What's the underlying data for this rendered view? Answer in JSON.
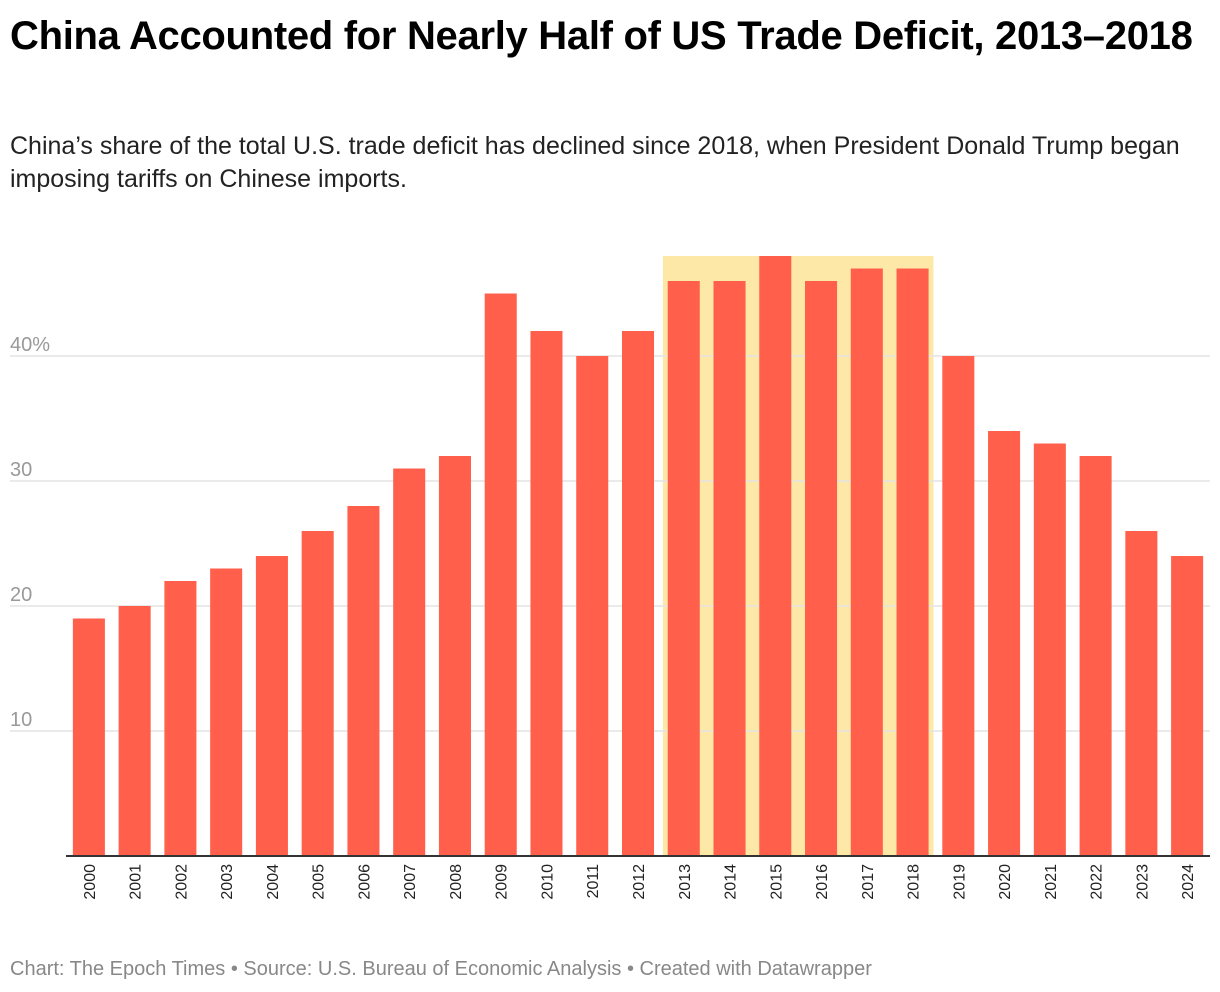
{
  "title": "China Accounted for Nearly Half of US Trade Deficit, 2013–2018",
  "subtitle": "China’s share of the total U.S. trade deficit has declined since 2018, when President Donald Trump began imposing tariffs on Chinese imports.",
  "footer": {
    "chart_credit": "Chart: The Epoch Times",
    "source": "Source: U.S. Bureau of Economic Analysis",
    "tool": "Created with Datawrapper",
    "separator": " • "
  },
  "colors": {
    "bar": "#ff5f4b",
    "highlight": "#fde8a8",
    "grid": "#e3e3e3",
    "baseline": "#333333"
  },
  "chart_data": {
    "type": "bar",
    "title": "China Accounted for Nearly Half of US Trade Deficit, 2013–2018",
    "xlabel": "",
    "ylabel": "",
    "ylim": [
      0,
      48
    ],
    "yticks": [
      10,
      20,
      30,
      40
    ],
    "ytick_labels": [
      "10",
      "20",
      "30",
      "40%"
    ],
    "grid": true,
    "categories": [
      "2000",
      "2001",
      "2002",
      "2003",
      "2004",
      "2005",
      "2006",
      "2007",
      "2008",
      "2009",
      "2010",
      "2011",
      "2012",
      "2013",
      "2014",
      "2015",
      "2016",
      "2017",
      "2018",
      "2019",
      "2020",
      "2021",
      "2022",
      "2023",
      "2024"
    ],
    "values": [
      19,
      20,
      22,
      23,
      24,
      26,
      28,
      31,
      32,
      45,
      42,
      40,
      42,
      46,
      46,
      48,
      46,
      47,
      47,
      40,
      34,
      33,
      32,
      26,
      24
    ],
    "highlight_range": [
      "2013",
      "2018"
    ]
  }
}
